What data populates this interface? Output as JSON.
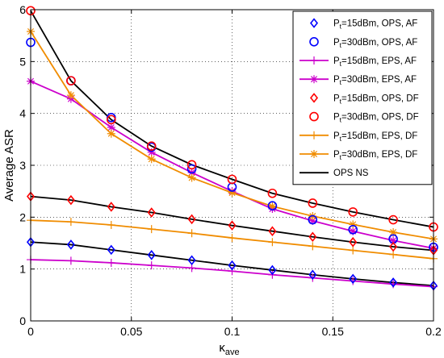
{
  "chart_data": {
    "type": "line",
    "xlabel": "κ",
    "xlabel_sub": "ave",
    "ylabel": "Average ASR",
    "xlim": [
      0,
      0.2
    ],
    "ylim": [
      0,
      6
    ],
    "grid": true,
    "legend_position": "top-right",
    "x": [
      0,
      0.02,
      0.04,
      0.06,
      0.08,
      0.1,
      0.12,
      0.14,
      0.16,
      0.18,
      0.2
    ],
    "xticks": [
      0,
      0.05,
      0.1,
      0.15,
      0.2
    ],
    "xtick_labels": [
      "0",
      "0.05",
      "0.1",
      "0.15",
      "0.2"
    ],
    "yticks": [
      0,
      1,
      2,
      3,
      4,
      5,
      6
    ],
    "ytick_labels": [
      "0",
      "1",
      "2",
      "3",
      "4",
      "5",
      "6"
    ],
    "series": [
      {
        "name": "Pt=15dBm, OPS, AF",
        "legend_main": "P",
        "legend_sub": "t",
        "legend_rest": "=15dBm, OPS, AF",
        "color": "#0000ff",
        "line": false,
        "marker": "diamond",
        "values": [
          1.52,
          1.47,
          1.37,
          1.27,
          1.17,
          1.07,
          0.98,
          0.89,
          0.81,
          0.74,
          0.68
        ]
      },
      {
        "name": "Pt=30dBm, OPS, AF",
        "legend_main": "P",
        "legend_sub": "t",
        "legend_rest": "=30dBm, OPS, AF",
        "color": "#0000ff",
        "line": false,
        "marker": "circle",
        "values": [
          5.37,
          4.63,
          3.92,
          3.35,
          2.93,
          2.58,
          2.22,
          1.95,
          1.76,
          1.58,
          1.42
        ]
      },
      {
        "name": "Pt=15dBm, EPS, AF",
        "legend_main": "P",
        "legend_sub": "t",
        "legend_rest": "=15dBm, EPS, AF",
        "color": "#cc00cc",
        "line": true,
        "marker": "plus",
        "values": [
          1.18,
          1.16,
          1.12,
          1.07,
          1.02,
          0.96,
          0.89,
          0.83,
          0.77,
          0.71,
          0.66
        ]
      },
      {
        "name": "Pt=30dBm, EPS, AF",
        "legend_main": "P",
        "legend_sub": "t",
        "legend_rest": "=30dBm, EPS, AF",
        "color": "#cc00cc",
        "line": true,
        "marker": "asterisk",
        "values": [
          4.62,
          4.28,
          3.73,
          3.25,
          2.86,
          2.5,
          2.16,
          1.93,
          1.73,
          1.55,
          1.4
        ]
      },
      {
        "name": "Pt=15dBm, OPS, DF",
        "legend_main": "P",
        "legend_sub": "t",
        "legend_rest": "=15dBm, OPS, DF",
        "color": "#ff0000",
        "line": false,
        "marker": "diamond",
        "values": [
          2.4,
          2.33,
          2.2,
          2.09,
          1.96,
          1.84,
          1.73,
          1.62,
          1.52,
          1.43,
          1.36
        ]
      },
      {
        "name": "Pt=30dBm, OPS, DF",
        "legend_main": "P",
        "legend_sub": "t",
        "legend_rest": "=30dBm, OPS, DF",
        "color": "#ff0000",
        "line": false,
        "marker": "circle",
        "values": [
          5.98,
          4.63,
          3.88,
          3.37,
          3.01,
          2.73,
          2.46,
          2.27,
          2.1,
          1.95,
          1.81
        ]
      },
      {
        "name": "Pt=15dBm, EPS, DF",
        "legend_main": "P",
        "legend_sub": "t",
        "legend_rest": "=15dBm, EPS, DF",
        "color": "#f08c00",
        "line": true,
        "marker": "plus",
        "values": [
          1.94,
          1.91,
          1.85,
          1.77,
          1.69,
          1.6,
          1.52,
          1.44,
          1.36,
          1.28,
          1.2
        ]
      },
      {
        "name": "Pt=30dBm, EPS, DF",
        "legend_main": "P",
        "legend_sub": "t",
        "legend_rest": "=30dBm, EPS, DF",
        "color": "#f08c00",
        "line": true,
        "marker": "asterisk",
        "values": [
          5.58,
          4.35,
          3.61,
          3.12,
          2.76,
          2.47,
          2.21,
          2.02,
          1.86,
          1.71,
          1.58
        ]
      },
      {
        "name": "OPS NS",
        "legend_main": "OPS NS",
        "legend_sub": "",
        "legend_rest": "",
        "color": "#000000",
        "line": true,
        "marker": "none",
        "values": [
          5.98,
          4.63,
          3.88,
          3.37,
          3.01,
          2.73,
          2.46,
          2.27,
          2.1,
          1.95,
          1.81
        ]
      },
      {
        "name": "OPS NS (lower)",
        "color": "#000000",
        "line": true,
        "marker": "none",
        "in_legend": false,
        "values": [
          2.4,
          2.33,
          2.2,
          2.09,
          1.96,
          1.84,
          1.73,
          1.62,
          1.52,
          1.43,
          1.36
        ]
      },
      {
        "name": "OPS NS (lowest)",
        "color": "#000000",
        "line": true,
        "marker": "none",
        "in_legend": false,
        "values": [
          1.52,
          1.47,
          1.37,
          1.27,
          1.17,
          1.07,
          0.98,
          0.89,
          0.81,
          0.74,
          0.68
        ]
      }
    ]
  }
}
